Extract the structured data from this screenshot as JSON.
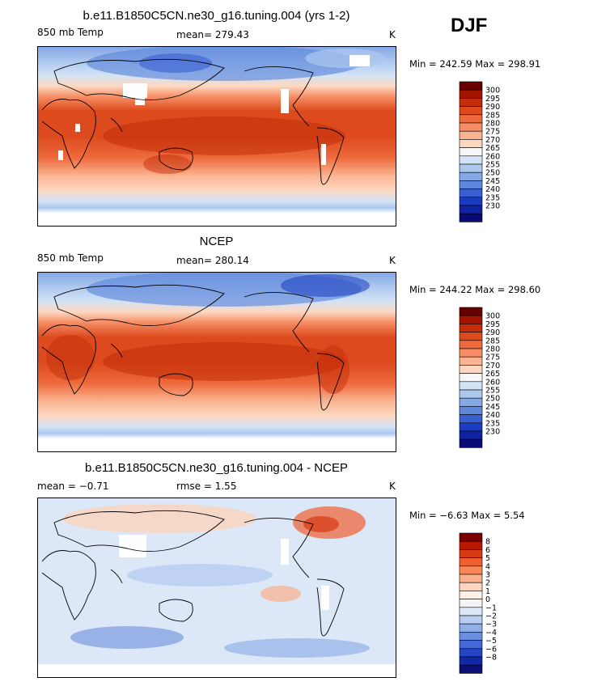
{
  "season": "DJF",
  "colors": {
    "temp": [
      "#670000",
      "#a51400",
      "#c32d0a",
      "#dc4a1d",
      "#ee6a3c",
      "#f68d63",
      "#fab491",
      "#fdd7c0",
      "#f7f7f7",
      "#d4e3f5",
      "#acc8ef",
      "#85a8e6",
      "#5e87dc",
      "#3a5fd2",
      "#1b3cc0",
      "#0f22a0",
      "#0a0a76"
    ],
    "diff": [
      "#7a0000",
      "#b51a00",
      "#d63a10",
      "#ee6030",
      "#f8885a",
      "#fbb08a",
      "#fdd4bd",
      "#fff0e6",
      "#f4f4f4",
      "#dce7f7",
      "#b8cdf1",
      "#91b0e8",
      "#6b8fde",
      "#4468d5",
      "#2444c4",
      "#1227a6",
      "#0a0f7a"
    ]
  },
  "panels": [
    {
      "title": "b.e11.B1850C5CN.ne30_g16.tuning.004 (yrs 1-2)",
      "left": "850 mb Temp",
      "center": "mean= 279.43",
      "right": "K",
      "minmax": "Min = 242.59 Max = 298.91"
    },
    {
      "title": "NCEP",
      "left": "850 mb Temp",
      "center": "mean= 280.14",
      "right": "K",
      "minmax": "Min = 244.22 Max = 298.60"
    },
    {
      "title": "b.e11.B1850C5CN.ne30_g16.tuning.004 - NCEP",
      "left": "mean =  −0.71",
      "center": "rmse =    1.55",
      "right": "K",
      "minmax": "Min =  −6.63 Max =   5.54"
    }
  ],
  "chart_data": [
    {
      "type": "heatmap",
      "title": "b.e11.B1850C5CN.ne30_g16.tuning.004 (yrs 1-2)",
      "variable": "850 mb Temp",
      "units": "K",
      "mean": 279.43,
      "min": 242.59,
      "max": 298.91,
      "colorbar_levels": [
        300,
        295,
        290,
        285,
        280,
        275,
        270,
        265,
        260,
        255,
        250,
        245,
        240,
        235,
        230
      ],
      "colormap": "blue-white-red",
      "missing_over_high_terrain": true
    },
    {
      "type": "heatmap",
      "title": "NCEP",
      "variable": "850 mb Temp",
      "units": "K",
      "mean": 280.14,
      "min": 244.22,
      "max": 298.6,
      "colorbar_levels": [
        300,
        295,
        290,
        285,
        280,
        275,
        270,
        265,
        260,
        255,
        250,
        245,
        240,
        235,
        230
      ],
      "colormap": "blue-white-red"
    },
    {
      "type": "heatmap",
      "title": "b.e11.B1850C5CN.ne30_g16.tuning.004 - NCEP",
      "units": "K",
      "mean": -0.71,
      "rmse": 1.55,
      "min": -6.63,
      "max": 5.54,
      "colorbar_levels": [
        "8",
        "6",
        "5",
        "4",
        "3",
        "2",
        "1",
        "0",
        "−1",
        "−2",
        "−3",
        "−4",
        "−5",
        "−6",
        "−8"
      ],
      "colormap": "blue-white-red"
    }
  ]
}
